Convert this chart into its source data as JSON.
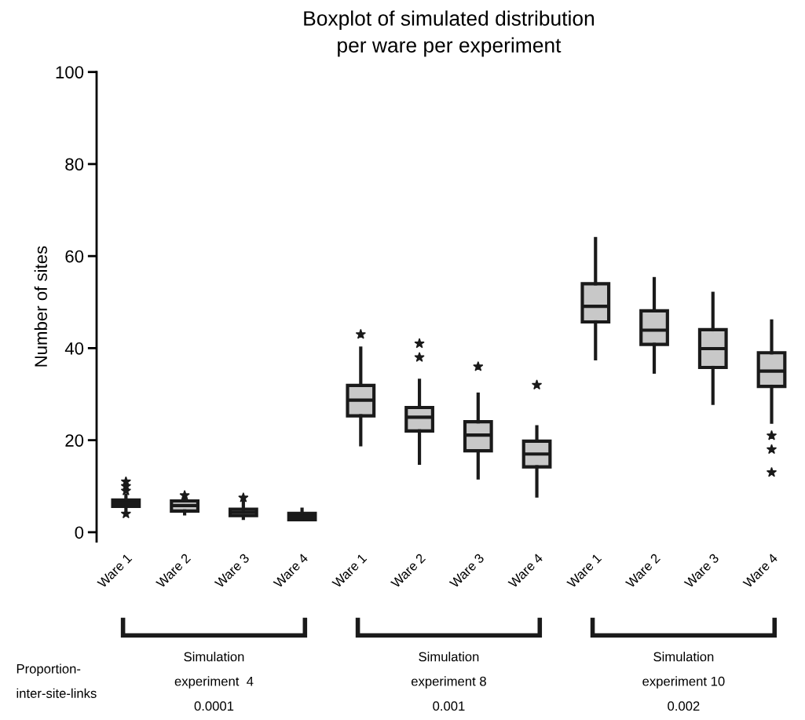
{
  "chart_data": {
    "type": "box",
    "title": "Boxplot of simulated distribution\nper ware per experiment",
    "ylabel": "Number of sites",
    "categories": [
      "Ware 1",
      "Ware 2",
      "Ware 3",
      "Ware 4",
      "Ware 1",
      "Ware 2",
      "Ware 3",
      "Ware 4",
      "Ware 1",
      "Ware 2",
      "Ware 3",
      "Ware 4"
    ],
    "color": "#c8c8c8",
    "marker": "star",
    "boxes": [
      {
        "low": 4.5,
        "q1": 5.6,
        "median": 6.3,
        "q3": 7,
        "high": 8,
        "outliers": [
          11,
          10,
          9,
          4
        ]
      },
      {
        "low": 4,
        "q1": 4.6,
        "median": 5.8,
        "q3": 6.8,
        "high": 7.6,
        "outliers": [
          8
        ]
      },
      {
        "low": 3,
        "q1": 3.6,
        "median": 4.3,
        "q3": 5,
        "high": 6.8,
        "outliers": [
          7.5
        ]
      },
      {
        "low": 2.7,
        "q1": 2.7,
        "median": 3.4,
        "q3": 4.1,
        "high": 5
      },
      {
        "low": 19,
        "q1": 25.3,
        "median": 28.7,
        "q3": 31.9,
        "high": 40,
        "outliers": [
          43
        ]
      },
      {
        "low": 15,
        "q1": 22,
        "median": 25,
        "q3": 27.1,
        "high": 33,
        "outliers": [
          38,
          41
        ]
      },
      {
        "low": 11.8,
        "q1": 17.7,
        "median": 21.1,
        "q3": 24,
        "high": 30,
        "outliers": [
          36
        ]
      },
      {
        "low": 7.9,
        "q1": 14.2,
        "median": 17,
        "q3": 19.8,
        "high": 22.9,
        "outliers": [
          32
        ]
      },
      {
        "low": 37.7,
        "q1": 45.7,
        "median": 49.1,
        "q3": 54,
        "high": 63.8
      },
      {
        "low": 34.8,
        "q1": 40.8,
        "median": 43.9,
        "q3": 48.1,
        "high": 55.1
      },
      {
        "low": 28,
        "q1": 35.8,
        "median": 39.9,
        "q3": 44,
        "high": 51.9
      },
      {
        "low": 23.9,
        "q1": 31.7,
        "median": 35,
        "q3": 39,
        "high": 45.9,
        "outliers": [
          13,
          18,
          21
        ]
      }
    ],
    "ylim": [
      -2,
      100
    ],
    "yticks": [
      0,
      20,
      40,
      60,
      80,
      100
    ],
    "annotations": [
      "Simulation\nexperiment  4",
      "0.0001",
      "Simulation\nexperiment 8",
      "0.001",
      "Simulation\nexperiment 10",
      "0.002",
      "Proportion-\ninter-site-links"
    ]
  }
}
